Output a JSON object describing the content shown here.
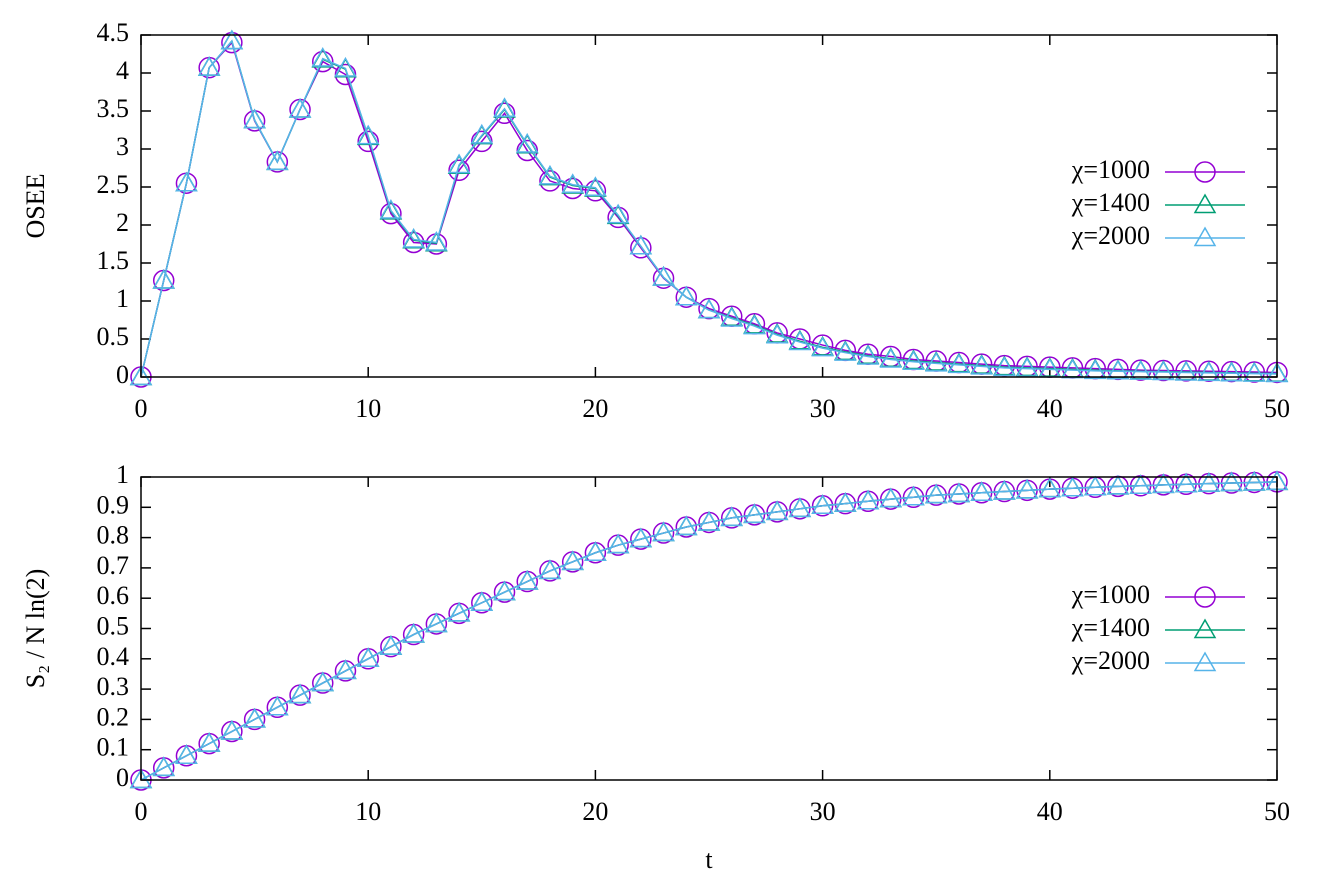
{
  "chart_data": [
    {
      "type": "line",
      "ylabel": "OSEE",
      "x": [
        0,
        1,
        2,
        3,
        4,
        5,
        6,
        7,
        8,
        9,
        10,
        11,
        12,
        13,
        14,
        15,
        16,
        17,
        18,
        19,
        20,
        21,
        22,
        23,
        24,
        25,
        26,
        27,
        28,
        29,
        30,
        31,
        32,
        33,
        34,
        35,
        36,
        37,
        38,
        39,
        40,
        41,
        42,
        43,
        44,
        45,
        46,
        47,
        48,
        49,
        50
      ],
      "xlim": [
        0,
        50
      ],
      "xticks": [
        0,
        10,
        20,
        30,
        40,
        50
      ],
      "ylim": [
        0,
        4.5
      ],
      "yticks": [
        0,
        0.5,
        1,
        1.5,
        2,
        2.5,
        3,
        3.5,
        4,
        4.5
      ],
      "legend": "right",
      "series": [
        {
          "name": "χ=1000",
          "color": "#9400d3",
          "marker": "circle",
          "values": [
            0,
            1.27,
            2.55,
            4.07,
            4.4,
            3.37,
            2.83,
            3.52,
            4.15,
            3.98,
            3.1,
            2.15,
            1.77,
            1.75,
            2.72,
            3.1,
            3.47,
            2.98,
            2.58,
            2.48,
            2.45,
            2.1,
            1.7,
            1.3,
            1.05,
            0.9,
            0.8,
            0.7,
            0.58,
            0.5,
            0.42,
            0.35,
            0.3,
            0.27,
            0.23,
            0.21,
            0.19,
            0.17,
            0.15,
            0.14,
            0.13,
            0.12,
            0.11,
            0.1,
            0.09,
            0.085,
            0.08,
            0.075,
            0.07,
            0.065,
            0.06
          ]
        },
        {
          "name": "χ=1400",
          "color": "#009e73",
          "marker": "triangle",
          "values": [
            0,
            1.27,
            2.55,
            4.07,
            4.42,
            3.38,
            2.83,
            3.52,
            4.18,
            4.05,
            3.16,
            2.18,
            1.8,
            1.76,
            2.78,
            3.17,
            3.52,
            3.05,
            2.63,
            2.52,
            2.48,
            2.12,
            1.72,
            1.31,
            1.05,
            0.88,
            0.78,
            0.68,
            0.56,
            0.47,
            0.39,
            0.33,
            0.28,
            0.24,
            0.21,
            0.19,
            0.17,
            0.15,
            0.13,
            0.12,
            0.11,
            0.1,
            0.09,
            0.08,
            0.075,
            0.07,
            0.065,
            0.06,
            0.055,
            0.05,
            0.045
          ]
        },
        {
          "name": "χ=2000",
          "color": "#56b4e9",
          "marker": "triangle",
          "values": [
            0,
            1.27,
            2.55,
            4.07,
            4.42,
            3.38,
            2.83,
            3.52,
            4.19,
            4.06,
            3.17,
            2.19,
            1.81,
            1.77,
            2.79,
            3.18,
            3.53,
            3.06,
            2.64,
            2.53,
            2.49,
            2.13,
            1.72,
            1.31,
            1.05,
            0.88,
            0.77,
            0.67,
            0.55,
            0.46,
            0.38,
            0.32,
            0.27,
            0.23,
            0.2,
            0.18,
            0.16,
            0.14,
            0.12,
            0.11,
            0.1,
            0.09,
            0.08,
            0.075,
            0.07,
            0.065,
            0.06,
            0.055,
            0.05,
            0.045,
            0.04
          ]
        }
      ]
    },
    {
      "type": "line",
      "ylabel": "S₂ / N ln(2)",
      "xlabel": "t",
      "x": [
        0,
        1,
        2,
        3,
        4,
        5,
        6,
        7,
        8,
        9,
        10,
        11,
        12,
        13,
        14,
        15,
        16,
        17,
        18,
        19,
        20,
        21,
        22,
        23,
        24,
        25,
        26,
        27,
        28,
        29,
        30,
        31,
        32,
        33,
        34,
        35,
        36,
        37,
        38,
        39,
        40,
        41,
        42,
        43,
        44,
        45,
        46,
        47,
        48,
        49,
        50
      ],
      "xlim": [
        0,
        50
      ],
      "xticks": [
        0,
        10,
        20,
        30,
        40,
        50
      ],
      "ylim": [
        0,
        1
      ],
      "yticks": [
        0,
        0.1,
        0.2,
        0.3,
        0.4,
        0.5,
        0.6,
        0.7,
        0.8,
        0.9,
        1
      ],
      "legend": "right",
      "series": [
        {
          "name": "χ=1000",
          "color": "#9400d3",
          "marker": "circle",
          "values": [
            0,
            0.04,
            0.08,
            0.12,
            0.16,
            0.2,
            0.24,
            0.28,
            0.32,
            0.36,
            0.4,
            0.44,
            0.48,
            0.515,
            0.55,
            0.585,
            0.62,
            0.655,
            0.69,
            0.72,
            0.75,
            0.775,
            0.795,
            0.815,
            0.835,
            0.85,
            0.865,
            0.875,
            0.885,
            0.895,
            0.905,
            0.912,
            0.92,
            0.927,
            0.933,
            0.94,
            0.944,
            0.948,
            0.952,
            0.956,
            0.96,
            0.963,
            0.966,
            0.969,
            0.971,
            0.974,
            0.976,
            0.978,
            0.98,
            0.982,
            0.984
          ]
        },
        {
          "name": "χ=1400",
          "color": "#009e73",
          "marker": "triangle",
          "values": [
            0,
            0.04,
            0.08,
            0.12,
            0.16,
            0.2,
            0.24,
            0.28,
            0.32,
            0.36,
            0.4,
            0.44,
            0.48,
            0.515,
            0.55,
            0.585,
            0.62,
            0.655,
            0.69,
            0.72,
            0.75,
            0.775,
            0.795,
            0.815,
            0.835,
            0.85,
            0.865,
            0.875,
            0.885,
            0.895,
            0.905,
            0.912,
            0.92,
            0.927,
            0.933,
            0.94,
            0.944,
            0.948,
            0.952,
            0.956,
            0.96,
            0.963,
            0.966,
            0.969,
            0.971,
            0.974,
            0.976,
            0.978,
            0.98,
            0.982,
            0.984
          ]
        },
        {
          "name": "χ=2000",
          "color": "#56b4e9",
          "marker": "triangle",
          "values": [
            0,
            0.04,
            0.08,
            0.12,
            0.16,
            0.2,
            0.24,
            0.28,
            0.32,
            0.36,
            0.4,
            0.44,
            0.48,
            0.515,
            0.55,
            0.585,
            0.62,
            0.655,
            0.69,
            0.72,
            0.75,
            0.775,
            0.795,
            0.815,
            0.835,
            0.85,
            0.865,
            0.875,
            0.885,
            0.895,
            0.905,
            0.912,
            0.92,
            0.927,
            0.933,
            0.94,
            0.944,
            0.948,
            0.952,
            0.956,
            0.96,
            0.963,
            0.966,
            0.969,
            0.971,
            0.974,
            0.976,
            0.978,
            0.98,
            0.982,
            0.984
          ]
        }
      ]
    }
  ]
}
